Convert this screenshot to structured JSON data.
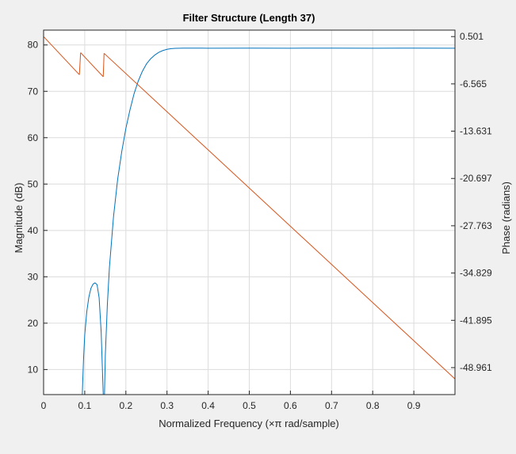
{
  "chart_data": {
    "type": "line",
    "title": "Filter Structure (Length 37)",
    "xlabel": "Normalized Frequency (×π rad/sample)",
    "ylabel_left": "Magnitude (dB)",
    "ylabel_right": "Phase (radians)",
    "xlim": [
      0,
      1
    ],
    "ylim_left": [
      4.6,
      83.2
    ],
    "ylim_right": [
      -52.99,
      1.47
    ],
    "x_ticks": [
      0,
      0.1,
      0.2,
      0.3,
      0.4,
      0.5,
      0.6,
      0.7,
      0.8,
      0.9
    ],
    "x_tick_labels": [
      "0",
      "0.1",
      "0.2",
      "0.3",
      "0.4",
      "0.5",
      "0.6",
      "0.7",
      "0.8",
      "0.9"
    ],
    "y_left_ticks": [
      10,
      20,
      30,
      40,
      50,
      60,
      70,
      80
    ],
    "y_left_tick_labels": [
      "10",
      "20",
      "30",
      "40",
      "50",
      "60",
      "70",
      "80"
    ],
    "y_right_ticks": [
      0.501,
      -6.565,
      -13.631,
      -20.697,
      -27.763,
      -34.829,
      -41.895,
      -48.961
    ],
    "y_right_tick_labels": [
      "0.501",
      "-6.565",
      "-13.631",
      "-20.697",
      "-27.763",
      "-34.829",
      "-41.895",
      "-48.961"
    ],
    "grid": true,
    "series": [
      {
        "axis": "left",
        "color": "#0072bd",
        "segments": [
          {
            "x": [
              0.094,
              0.097,
              0.1,
              0.105,
              0.11,
              0.115,
              0.12,
              0.125,
              0.13,
              0.135,
              0.14,
              0.145
            ],
            "y": [
              4.6,
              12,
              17.5,
              22.5,
              25.6,
              27.5,
              28.4,
              28.7,
              28.3,
              25.5,
              18,
              4.6
            ]
          },
          {
            "x": [
              0.148,
              0.15,
              0.155,
              0.16,
              0.17,
              0.18,
              0.19,
              0.2,
              0.21,
              0.22,
              0.23,
              0.24,
              0.25,
              0.26,
              0.27,
              0.28,
              0.29,
              0.3,
              0.31,
              0.32,
              0.33,
              0.34,
              0.35,
              0.4,
              0.5,
              0.6,
              0.7,
              0.8,
              0.9,
              1.0
            ],
            "y": [
              4.6,
              13,
              24,
              32,
              43,
              51,
              57,
              62,
              66,
              69.5,
              72.2,
              74.3,
              75.9,
              77,
              77.8,
              78.4,
              78.8,
              79.05,
              79.2,
              79.27,
              79.3,
              79.31,
              79.31,
              79.3,
              79.32,
              79.3,
              79.31,
              79.3,
              79.32,
              79.3
            ]
          }
        ]
      },
      {
        "axis": "right",
        "color": "#d95319",
        "segments": [
          {
            "x": [
              0,
              0.087
            ],
            "y": [
              0.501,
              -5.2
            ]
          },
          {
            "x": [
              0.087,
              0.09
            ],
            "y": [
              -5.2,
              -1.9
            ]
          },
          {
            "x": [
              0.09,
              0.145
            ],
            "y": [
              -1.9,
              -5.5
            ]
          },
          {
            "x": [
              0.145,
              0.147
            ],
            "y": [
              -5.5,
              -2.0
            ]
          },
          {
            "x": [
              0.147,
              1.0
            ],
            "y": [
              -2.0,
              -50.65
            ]
          }
        ]
      }
    ]
  }
}
